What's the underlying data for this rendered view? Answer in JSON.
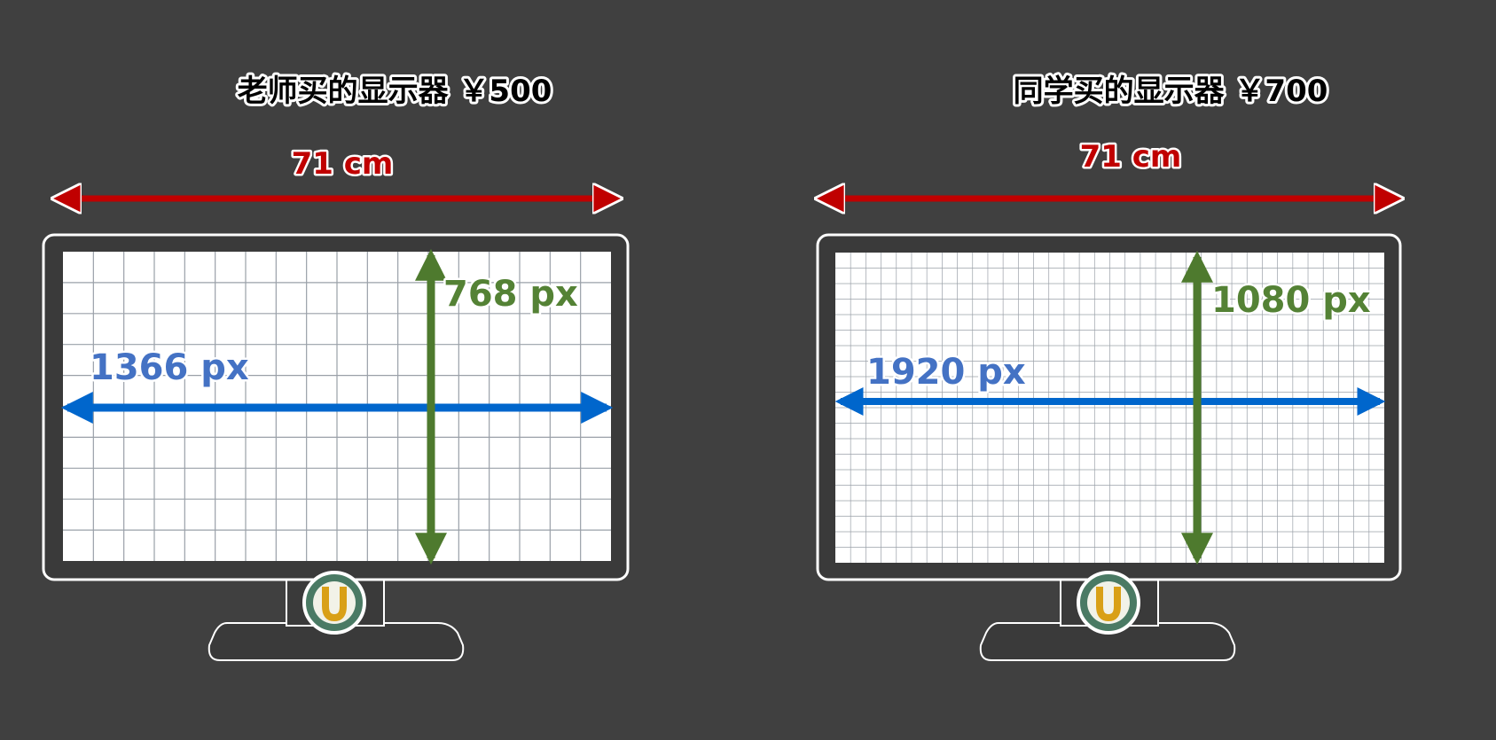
{
  "colors": {
    "background": "#404040",
    "monitor_body": "#3a3a3a",
    "monitor_outline": "#ffffff",
    "screen": "#ffffff",
    "grid_line": "#9aa0a8",
    "width_arrow": "#c00000",
    "horizontal_arrow": "#0066cc",
    "horizontal_label": "#4472c4",
    "vertical_arrow": "#4e7a2e",
    "vertical_label": "#548235",
    "logo_outer": "#4a7a64",
    "logo_inner": "#f2f2e8",
    "logo_u": "#d9a017"
  },
  "monitors": [
    {
      "title": "老师买的显示器 ￥500",
      "width_label": "71 cm",
      "horizontal_label": "1366 px",
      "vertical_label": "768 px",
      "grid_columns": 18,
      "grid_rows": 10
    },
    {
      "title": "同学买的显示器 ￥700",
      "width_label": "71 cm",
      "horizontal_label": "1920 px",
      "vertical_label": "1080 px",
      "grid_columns": 36,
      "grid_rows": 20
    }
  ]
}
